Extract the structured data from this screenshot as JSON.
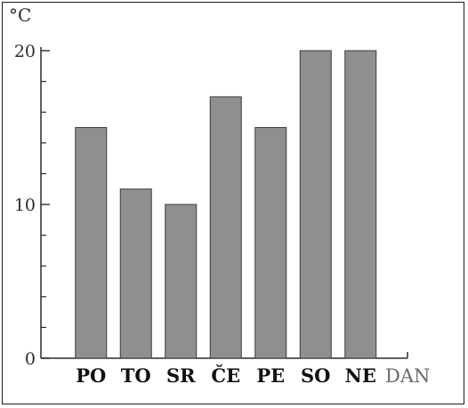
{
  "chart_data": {
    "type": "bar",
    "categories": [
      "PO",
      "TO",
      "SR",
      "ČE",
      "PE",
      "SO",
      "NE"
    ],
    "values": [
      15,
      11,
      10,
      17,
      15,
      20,
      20
    ],
    "title": "",
    "xlabel": "DAN",
    "ylabel": "°C",
    "ylim": [
      0,
      20
    ],
    "y_ticks": [
      0,
      10,
      20
    ],
    "y_minor_step": 2,
    "grid": false,
    "bar_color": "#8f8f91",
    "bar_edge_color": "#3a3a3a",
    "axis_color": "#2a2a2a"
  }
}
